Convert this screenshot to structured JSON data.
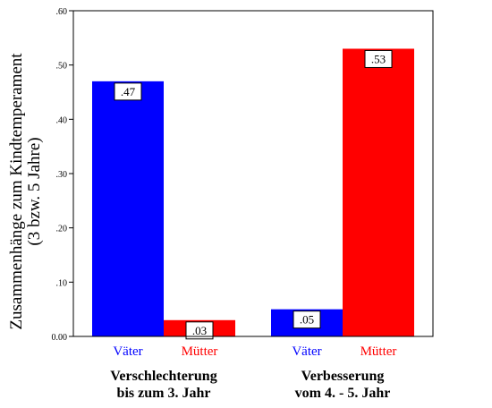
{
  "chart_data": {
    "type": "bar",
    "ylabel_lines": [
      "Zusammenhänge zum Kindtemperament",
      "(3 bzw. 5 Jahre)"
    ],
    "ylim": [
      0,
      0.6
    ],
    "yticks": [
      {
        "value": 0.0,
        "label": "0.00"
      },
      {
        "value": 0.1,
        "label": ".10"
      },
      {
        "value": 0.2,
        "label": ".20"
      },
      {
        "value": 0.3,
        "label": ".30"
      },
      {
        "value": 0.4,
        "label": ".40"
      },
      {
        "value": 0.5,
        "label": ".50"
      },
      {
        "value": 0.6,
        "label": ".60"
      }
    ],
    "groups": [
      {
        "label_lines": [
          "Verschlechterung",
          "bis zum 3. Jahr"
        ],
        "bars": [
          {
            "series": "Väter",
            "value": 0.47,
            "label": ".47"
          },
          {
            "series": "Mütter",
            "value": 0.03,
            "label": ".03"
          }
        ]
      },
      {
        "label_lines": [
          "Verbesserung",
          "vom 4. - 5. Jahr"
        ],
        "bars": [
          {
            "series": "Väter",
            "value": 0.05,
            "label": ".05"
          },
          {
            "series": "Mütter",
            "value": 0.53,
            "label": ".53"
          }
        ]
      }
    ],
    "series": [
      {
        "name": "Väter",
        "color": "#0000ff"
      },
      {
        "name": "Mütter",
        "color": "#ff0000"
      }
    ],
    "grid": false
  }
}
